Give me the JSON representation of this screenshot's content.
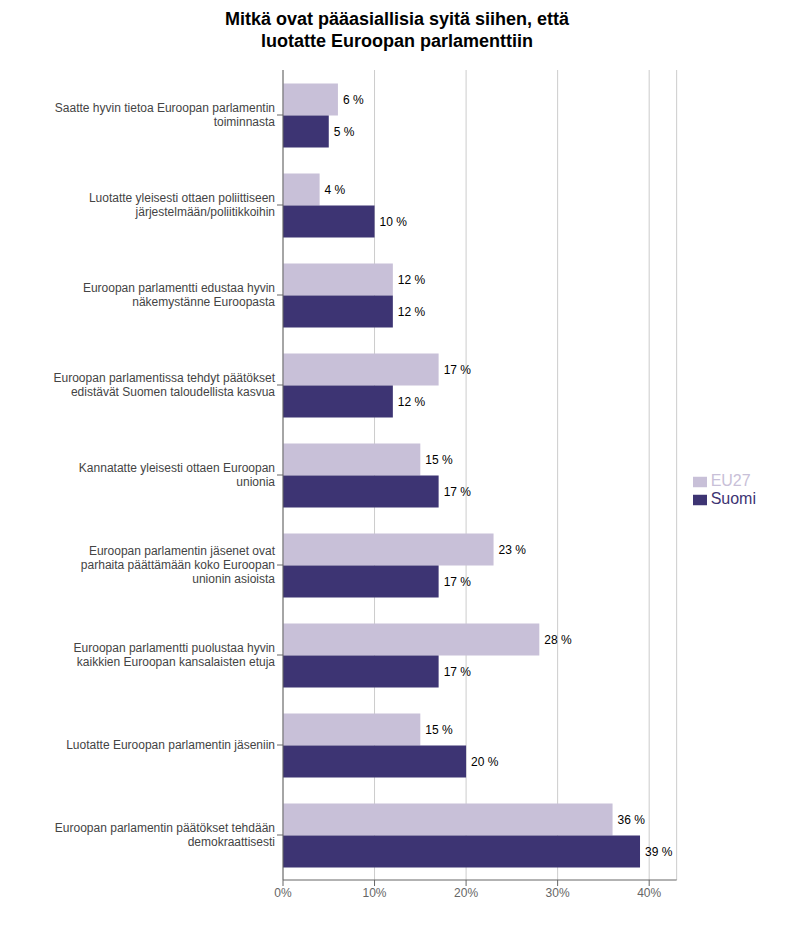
{
  "chart_data": {
    "type": "bar",
    "orientation": "horizontal",
    "title": "Mitkä ovat pääasiallisia syitä siihen, että\nluotatte Euroopan parlamenttiin",
    "categories": [
      "Saatte hyvin tietoa Euroopan parlamentin\ntoiminnasta",
      "Luotatte yleisesti ottaen poliittiseen\njärjestelmään/poliitikkoihin",
      "Euroopan parlamentti edustaa hyvin\nnäkemystänne Euroopasta",
      "Euroopan parlamentissa tehdyt päätökset\nedistävät Suomen taloudellista kasvua",
      "Kannatatte yleisesti ottaen Euroopan\nunionia",
      "Euroopan parlamentin jäsenet ovat\nparhaita päättämään koko Euroopan\nunionin asioista",
      "Euroopan parlamentti puolustaa hyvin\nkaikkien Euroopan kansalaisten etuja",
      "Luotatte Euroopan parlamentin jäseniin",
      "Euroopan parlamentin päätökset tehdään\ndemokraattisesti"
    ],
    "series": [
      {
        "name": "EU27",
        "color": "#c8c0d8",
        "values": [
          6,
          4,
          12,
          17,
          15,
          23,
          28,
          15,
          36
        ],
        "value_labels": [
          "6 %",
          "4 %",
          "12 %",
          "17 %",
          "15 %",
          "23 %",
          "28 %",
          "15 %",
          "36 %"
        ]
      },
      {
        "name": "Suomi",
        "color": "#3d3473",
        "values": [
          5,
          10,
          12,
          12,
          17,
          17,
          17,
          20,
          39
        ],
        "value_labels": [
          "5 %",
          "10 %",
          "12 %",
          "12 %",
          "17 %",
          "17 %",
          "17 %",
          "20 %",
          "39 %"
        ]
      }
    ],
    "xlim": [
      0,
      43
    ],
    "xticks": [
      {
        "value": 0,
        "label": "0%"
      },
      {
        "value": 10,
        "label": "10%"
      },
      {
        "value": 20,
        "label": "20%"
      },
      {
        "value": 30,
        "label": "30%"
      },
      {
        "value": 40,
        "label": "40%"
      }
    ],
    "grid": true,
    "legend": "right",
    "data_labels": true
  }
}
